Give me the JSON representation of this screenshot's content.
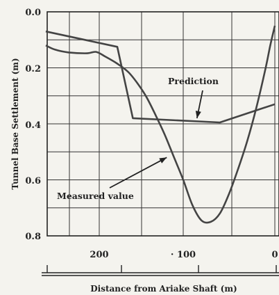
{
  "chart_data": {
    "type": "line",
    "xlabel": "Distance from Ariake Shaft (m)",
    "ylabel": "Tunnel Base Settlement (m)",
    "xlim": [
      250,
      0
    ],
    "ylim": [
      0.0,
      0.8
    ],
    "x_reversed": true,
    "y_inverted": true,
    "grid": true,
    "x_ticks": [
      {
        "value": 200,
        "label": "200"
      },
      {
        "value": 100,
        "label": "· 100"
      },
      {
        "value": 0,
        "label": "0"
      }
    ],
    "y_ticks": [
      {
        "value": 0.0,
        "label": "0.0"
      },
      {
        "value": 0.2,
        "label": "0.2"
      },
      {
        "value": 0.4,
        "label": "0.4"
      },
      {
        "value": 0.6,
        "label": "0.6"
      },
      {
        "value": 0.8,
        "label": "0.8"
      }
    ],
    "series": [
      {
        "name": "Prediction",
        "style": "polyline",
        "x": [
          250,
          172,
          155,
          60,
          0
        ],
        "y": [
          0.07,
          0.125,
          0.38,
          0.395,
          0.33
        ]
      },
      {
        "name": "Measured value",
        "style": "curve",
        "x": [
          250,
          240,
          225,
          205,
          195,
          185,
          172,
          160,
          150,
          140,
          130,
          120,
          110,
          100,
          90,
          80,
          70,
          60,
          50,
          40,
          30,
          20,
          10,
          5,
          0
        ],
        "y": [
          0.12,
          0.135,
          0.145,
          0.148,
          0.143,
          0.16,
          0.185,
          0.215,
          0.255,
          0.305,
          0.37,
          0.44,
          0.52,
          0.6,
          0.69,
          0.745,
          0.75,
          0.72,
          0.65,
          0.56,
          0.46,
          0.34,
          0.2,
          0.12,
          0.05
        ]
      }
    ],
    "annotations": [
      {
        "label": "Prediction",
        "x": 75,
        "y": 0.25,
        "arrow_to": [
          85,
          0.38
        ]
      },
      {
        "label": "Measured value",
        "x": 160,
        "y": 0.66,
        "arrow_to": [
          118,
          0.52
        ]
      }
    ],
    "color": "#444444"
  }
}
